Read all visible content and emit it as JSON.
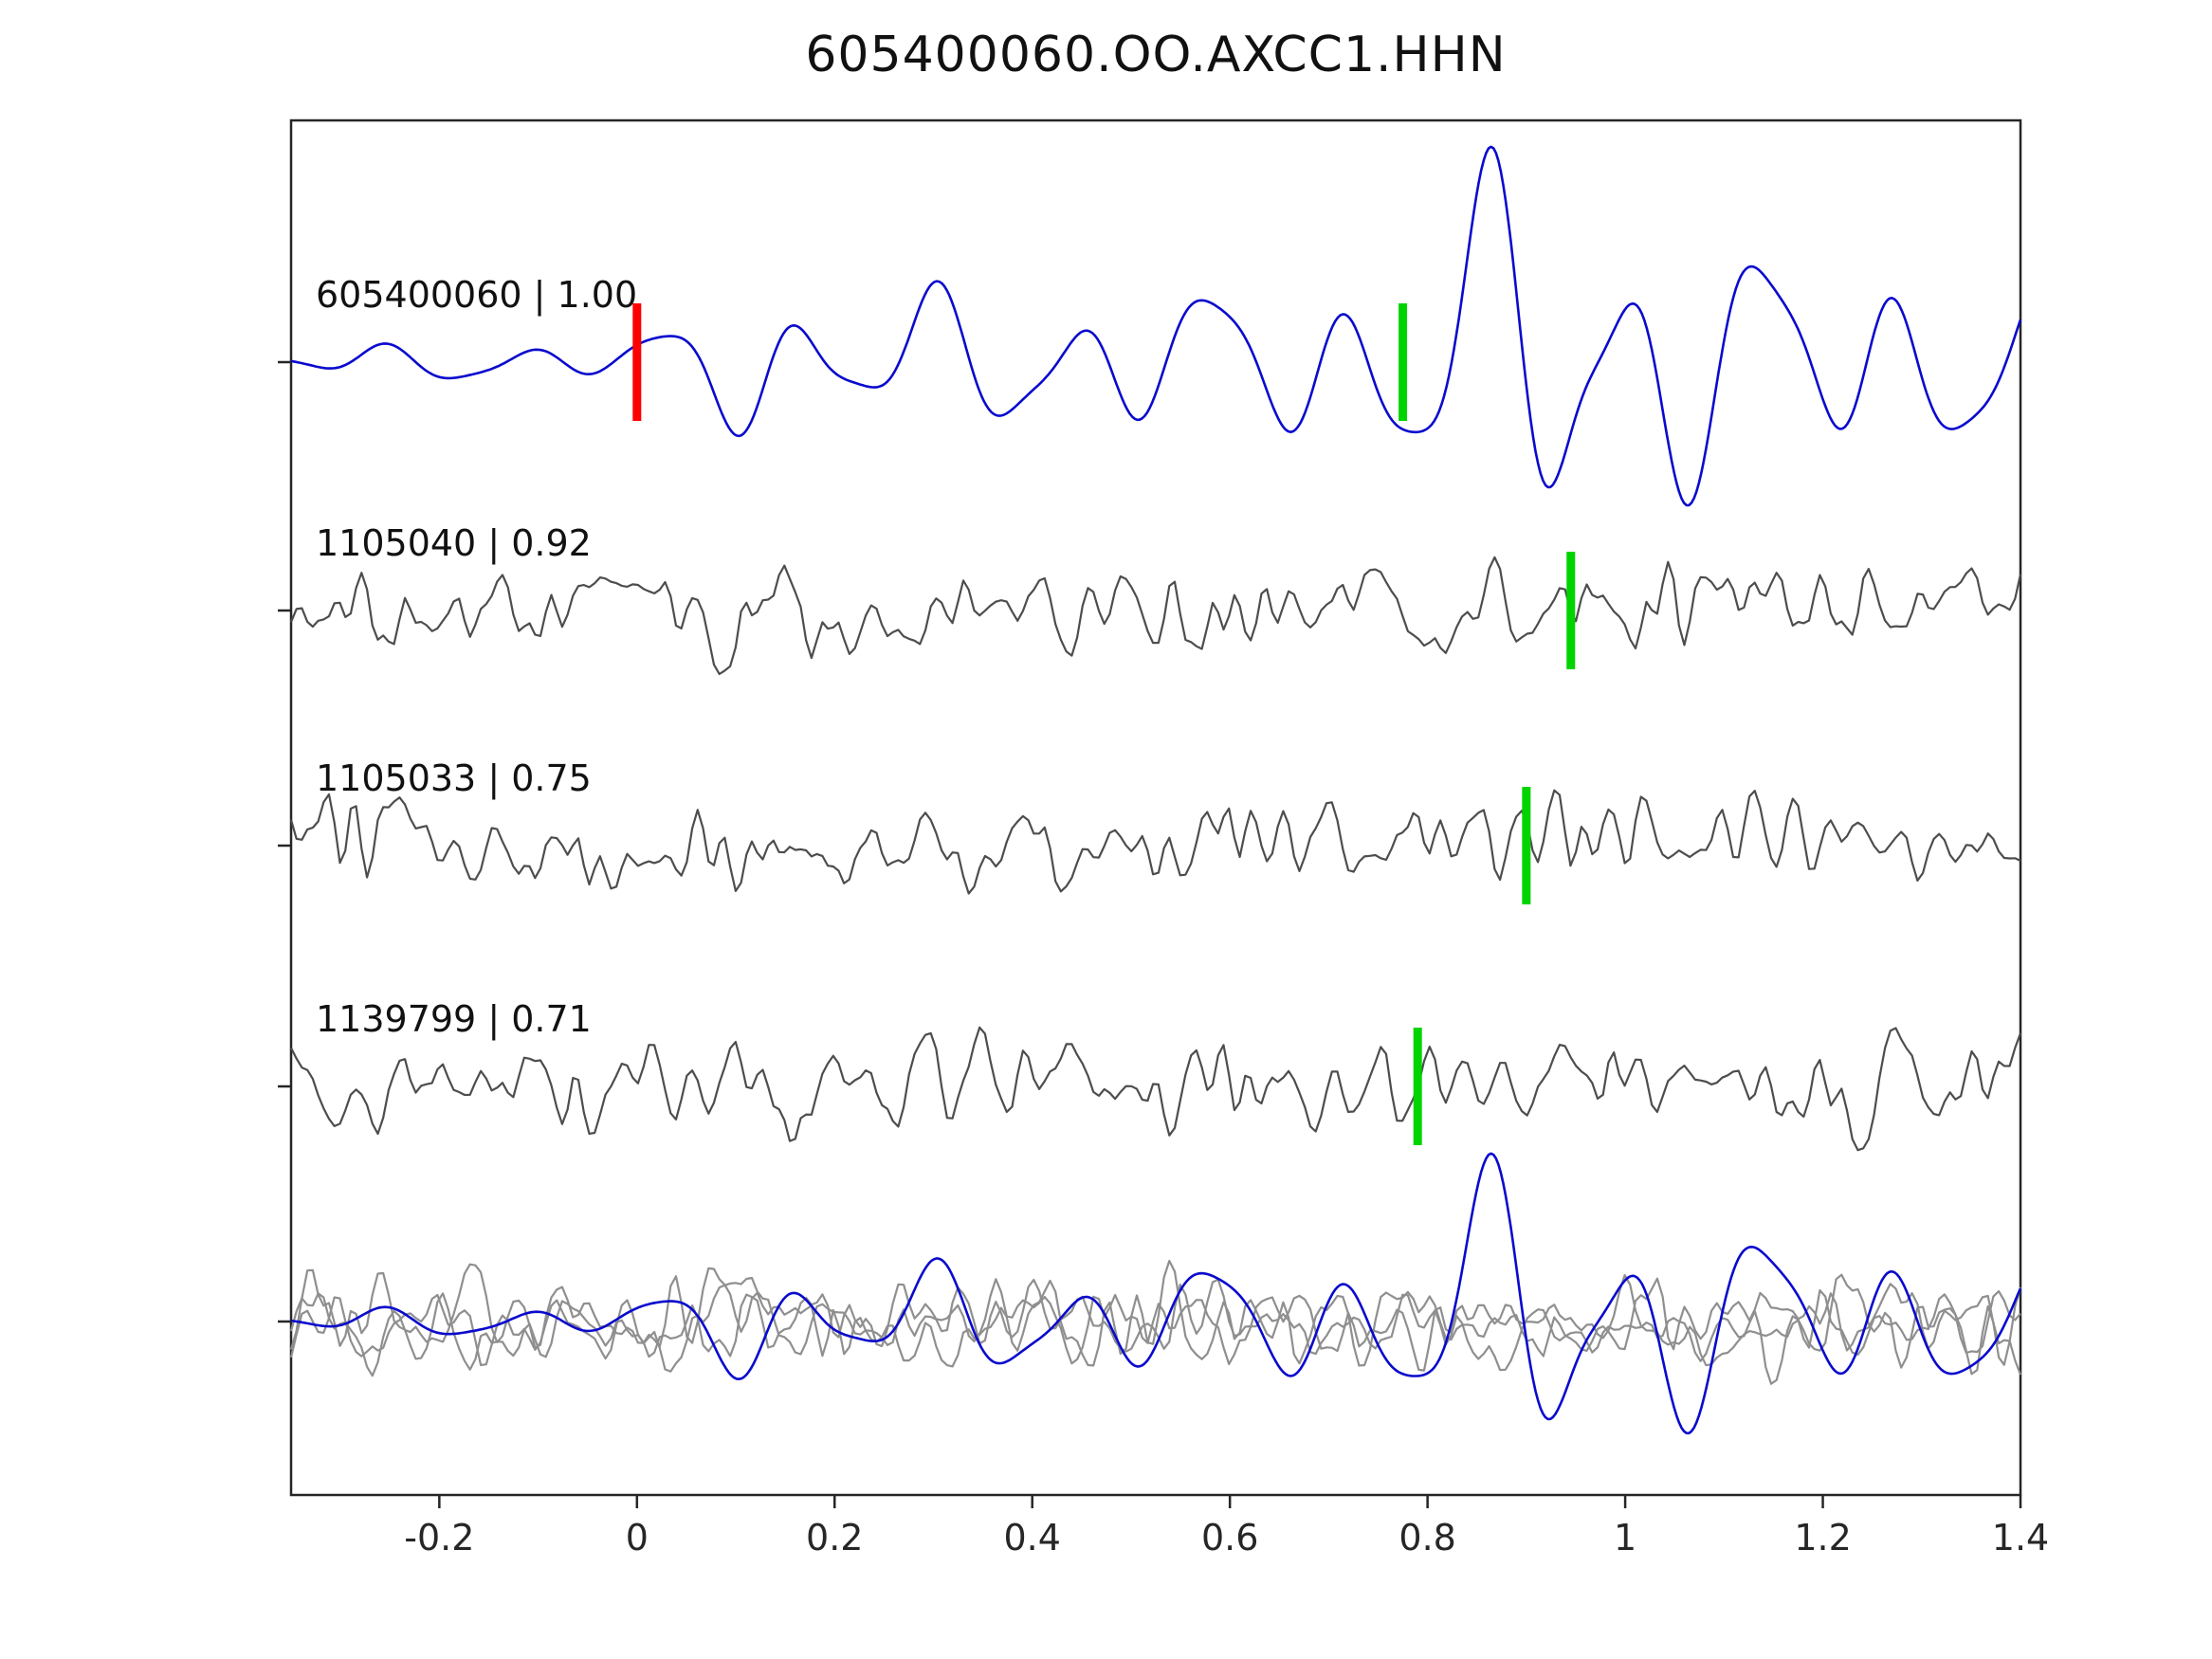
{
  "title": "605400060.OO.AXCC1.HHN",
  "chart_data": {
    "type": "line",
    "title": "605400060.OO.AXCC1.HHN",
    "xlabel": "",
    "ylabel": "",
    "xlim": [
      -0.35,
      1.4
    ],
    "x_ticks": [
      -0.2,
      0,
      0.2,
      0.4,
      0.6,
      0.8,
      1,
      1.2,
      1.4
    ],
    "x_tick_labels": [
      "-0.2",
      "0",
      "0.2",
      "0.4",
      "0.6",
      "0.8",
      "1",
      "1.2",
      "1.4"
    ],
    "grid": false,
    "legend_position": "none",
    "description": "Stacked waveform traces: template event (blue) and matched detections (gray) with cross-correlation coefficients; green ticks are pick times, red tick is template zero time; bottom row overlays all traces.",
    "colors": {
      "template_blue": "#0a0ace",
      "detection_gray": "#4d4d4d",
      "overlay_gray": "#8f8f8f",
      "pick_green": "#00d400",
      "origin_red": "#ff0000",
      "axis": "#262626"
    },
    "rows": [
      {
        "label": "605400060 | 1.00",
        "event_id": "605400060",
        "correlation": "1.00",
        "markers": [
          {
            "x": 0.0,
            "color": "#ff0000",
            "kind": "origin"
          },
          {
            "x": 0.775,
            "color": "#00d400",
            "kind": "pick"
          }
        ],
        "components": [
          {
            "style": "template",
            "color": "#0a0ace",
            "amplitude": 1.0,
            "seed": 11
          }
        ]
      },
      {
        "label": "1105040 | 0.92",
        "event_id": "1105040",
        "correlation": "0.92",
        "markers": [
          {
            "x": 0.945,
            "color": "#00d400",
            "kind": "pick"
          }
        ],
        "components": [
          {
            "style": "noise",
            "color": "#4d4d4d",
            "amplitude": 1.0,
            "seed": 21
          }
        ]
      },
      {
        "label": "1105033 | 0.75",
        "event_id": "1105033",
        "correlation": "0.75",
        "markers": [
          {
            "x": 0.9,
            "color": "#00d400",
            "kind": "pick"
          }
        ],
        "components": [
          {
            "style": "noise",
            "color": "#4d4d4d",
            "amplitude": 1.0,
            "seed": 31
          }
        ]
      },
      {
        "label": "1139799 | 0.71",
        "event_id": "1139799",
        "correlation": "0.71",
        "markers": [
          {
            "x": 0.79,
            "color": "#00d400",
            "kind": "pick"
          }
        ],
        "components": [
          {
            "style": "noise",
            "color": "#4d4d4d",
            "amplitude": 1.0,
            "seed": 41
          }
        ]
      },
      {
        "label": "",
        "event_id": "stack-overlay",
        "correlation": "",
        "markers": [],
        "components": [
          {
            "style": "noise",
            "color": "#8f8f8f",
            "amplitude": 0.92,
            "seed": 52
          },
          {
            "style": "noise",
            "color": "#8f8f8f",
            "amplitude": 0.92,
            "seed": 53
          },
          {
            "style": "noise",
            "color": "#8f8f8f",
            "amplitude": 0.92,
            "seed": 54
          },
          {
            "style": "template",
            "color": "#0a0ace",
            "amplitude": 0.78,
            "seed": 55
          }
        ]
      }
    ]
  }
}
